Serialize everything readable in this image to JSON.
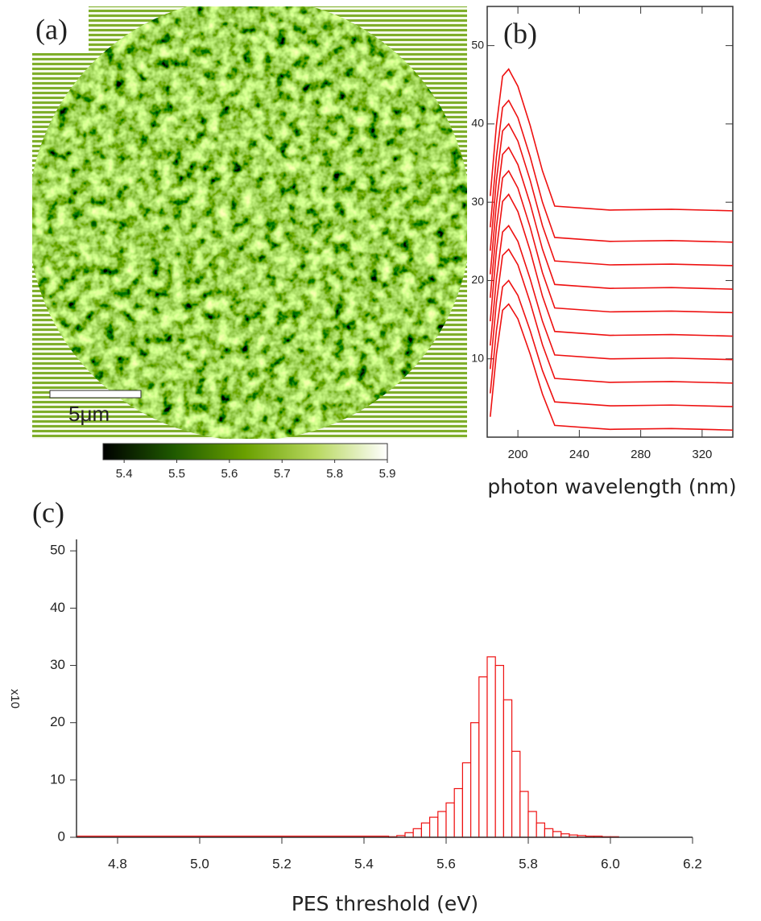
{
  "chart_data": [
    {
      "type": "map",
      "panel_label": "(a)",
      "scale_bar": "5μm",
      "clim": [
        5.36,
        5.9
      ],
      "cticks": [
        5.4,
        5.5,
        5.6,
        5.7,
        5.8,
        5.9
      ],
      "colors": [
        "#000000",
        "#1f5a00",
        "#6aa000",
        "#b8d860",
        "#ffffff"
      ]
    },
    {
      "type": "line",
      "panel_label": "(b)",
      "xlabel": "photon wavelength (nm)",
      "x": [
        182,
        186,
        190,
        194,
        200,
        208,
        216,
        224,
        260,
        300,
        340
      ],
      "xlim": [
        180,
        340
      ],
      "xticks": [
        200,
        240,
        280,
        320
      ],
      "ylim": [
        0,
        55
      ],
      "yticks": [
        10,
        20,
        30,
        40,
        50
      ],
      "color": "#ee1111",
      "series": [
        {
          "values": [
            2.6,
            10.6,
            16.2,
            17,
            15.1,
            10.6,
            5.5,
            1.5,
            1,
            1.1,
            0.9
          ]
        },
        {
          "values": [
            5.6,
            13.6,
            19.2,
            20,
            18.1,
            13.6,
            8.5,
            4.5,
            4,
            4.1,
            3.9
          ]
        },
        {
          "values": [
            8.7,
            17.2,
            23.2,
            24,
            22,
            17.2,
            11.8,
            7.5,
            7,
            7.1,
            6.9
          ]
        },
        {
          "values": [
            11.7,
            20.2,
            26.2,
            27,
            25,
            20.2,
            14.8,
            10.5,
            10,
            10.1,
            9.9
          ]
        },
        {
          "values": [
            14.8,
            23.8,
            30.1,
            31,
            28.8,
            23.8,
            18,
            13.5,
            13,
            13.1,
            12.9
          ]
        },
        {
          "values": [
            17.8,
            26.8,
            33.1,
            34,
            31.8,
            26.8,
            21,
            16.5,
            16,
            16.1,
            15.9
          ]
        },
        {
          "values": [
            20.8,
            29.8,
            36.1,
            37,
            34.8,
            29.8,
            24,
            19.5,
            19,
            19.1,
            18.9
          ]
        },
        {
          "values": [
            23.8,
            32.8,
            39.1,
            40,
            37.8,
            32.8,
            27,
            22.5,
            22,
            22.1,
            21.9
          ]
        },
        {
          "values": [
            26.8,
            35.8,
            42.1,
            43,
            40.8,
            35.8,
            30,
            25.5,
            25,
            25.1,
            24.9
          ]
        },
        {
          "values": [
            30.8,
            39.8,
            46.1,
            47,
            44.8,
            39.8,
            34,
            29.5,
            29,
            29.1,
            28.9
          ]
        }
      ]
    },
    {
      "type": "histogram",
      "panel_label": "(c)",
      "xlabel": "PES threshold (eV)",
      "ylabel": "x10",
      "bins": [
        4.7,
        5.46,
        5.48,
        5.5,
        5.52,
        5.54,
        5.56,
        5.58,
        5.6,
        5.62,
        5.64,
        5.66,
        5.68,
        5.7,
        5.72,
        5.74,
        5.76,
        5.78,
        5.8,
        5.82,
        5.84,
        5.86,
        5.88,
        5.9,
        5.92,
        5.94,
        5.96,
        5.98,
        6.0,
        6.02
      ],
      "values": [
        0.2,
        0.1,
        0.3,
        0.8,
        1.5,
        2.5,
        3.5,
        4.5,
        6,
        8.5,
        13,
        20,
        28,
        31.5,
        30,
        24,
        15,
        8,
        4.5,
        2.5,
        1.5,
        1,
        0.6,
        0.4,
        0.3,
        0.2,
        0.2,
        0.1,
        0.1
      ],
      "xlim": [
        4.7,
        6.2
      ],
      "xticks": [
        {
          "value": 4.8,
          "label": "4.8"
        },
        {
          "value": 5.0,
          "label": "5.0"
        },
        {
          "value": 5.2,
          "label": "5.2"
        },
        {
          "value": 5.4,
          "label": "5.4"
        },
        {
          "value": 5.6,
          "label": "5.6"
        },
        {
          "value": 5.8,
          "label": "5.8"
        },
        {
          "value": 6.0,
          "label": "6.0"
        },
        {
          "value": 6.2,
          "label": "6.2"
        }
      ],
      "ylim": [
        0,
        52
      ],
      "yticks": [
        0,
        10,
        20,
        30,
        40,
        50
      ],
      "color": "#ee1111"
    }
  ]
}
